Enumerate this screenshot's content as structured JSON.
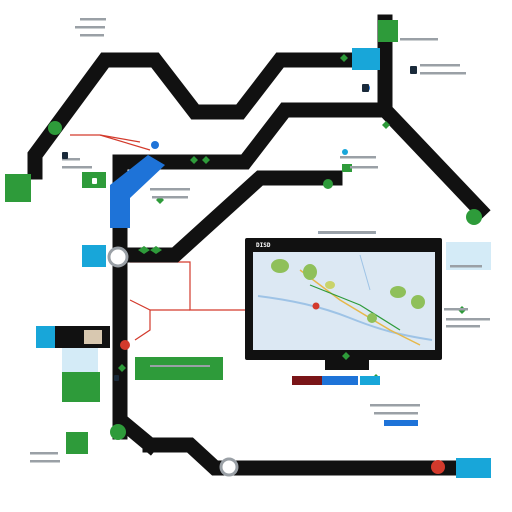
{
  "monitor": {
    "label": "DISD"
  },
  "colors": {
    "route": "#111111",
    "accent_blue": "#1e73d8",
    "accent_green": "#2e9b3a",
    "accent_red": "#d33a2c",
    "light_blue": "#bfe0f3",
    "cyan": "#18a6d9",
    "map_bg": "#dce8f3"
  },
  "icons": {
    "node": "map-marker-icon",
    "station": "round-station-icon",
    "leaf": "leaf-icon"
  }
}
